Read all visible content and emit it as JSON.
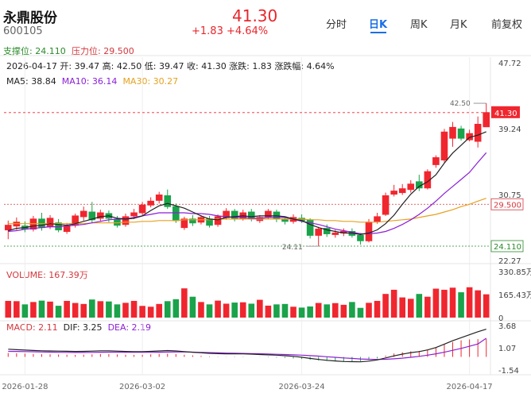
{
  "header": {
    "name": "永鼎股份",
    "code": "600105",
    "price": "41.30",
    "change": "+1.83 +4.64%",
    "support": "支撑位: 24.110",
    "pressure": "压力位: 29.500"
  },
  "tabs": [
    "分时",
    "日K",
    "周K",
    "月K",
    "前复权"
  ],
  "ohlc_line": "2026-04-17 开: 39.47 高: 42.50 低: 39.47 收: 41.30 涨跌: 1.83 涨跌幅: 4.64%",
  "ma_legend": [
    {
      "label": "MA5: 38.84",
      "color": "#222222"
    },
    {
      "label": "MA10: 36.14",
      "color": "#8b1fd6"
    },
    {
      "label": "MA30: 30.27",
      "color": "#e6a11f"
    }
  ],
  "volume_legend": "VOLUME: 167.39万",
  "macd_legend": [
    {
      "label": "MACD: 2.11",
      "color": "#d4373c"
    },
    {
      "label": "DIF: 3.25",
      "color": "#222222"
    },
    {
      "label": "DEA: 2.19",
      "color": "#8b1fd6"
    }
  ],
  "colors": {
    "up": "#f0262f",
    "down": "#1aa34a",
    "ma5": "#222222",
    "ma10": "#8b1fd6",
    "ma30": "#e6a11f",
    "accent": "#1a6fe8"
  },
  "chart_data": [
    {
      "type": "candlestick",
      "title": "",
      "ylim": [
        22.27,
        47.72
      ],
      "y_ticks": [
        "47.72",
        "39.24",
        "30.75",
        "22.27"
      ],
      "x_ticks": [
        "2026-01-28",
        "2026-03-02",
        "2026-03-24",
        "2026-04-17"
      ],
      "current_price_label": "41.30",
      "max_label": "42.50",
      "min_label": "24.11",
      "support_label": "24.110",
      "pressure_label": "29.500",
      "support": 24.11,
      "pressure": 29.5,
      "candles": [
        {
          "o": 26.2,
          "c": 26.8,
          "h": 27.4,
          "l": 25.0
        },
        {
          "o": 26.7,
          "c": 27.2,
          "h": 27.8,
          "l": 26.2
        },
        {
          "o": 26.7,
          "c": 26.3,
          "h": 27.3,
          "l": 25.9
        },
        {
          "o": 26.3,
          "c": 27.6,
          "h": 28.0,
          "l": 26.0
        },
        {
          "o": 27.6,
          "c": 26.5,
          "h": 28.4,
          "l": 26.1
        },
        {
          "o": 26.6,
          "c": 27.7,
          "h": 28.1,
          "l": 26.3
        },
        {
          "o": 27.1,
          "c": 26.2,
          "h": 27.6,
          "l": 25.9
        },
        {
          "o": 26.0,
          "c": 26.7,
          "h": 27.1,
          "l": 25.7
        },
        {
          "o": 26.8,
          "c": 28.0,
          "h": 28.3,
          "l": 26.5
        },
        {
          "o": 27.9,
          "c": 28.6,
          "h": 29.2,
          "l": 27.4
        },
        {
          "o": 28.5,
          "c": 27.5,
          "h": 29.8,
          "l": 27.1
        },
        {
          "o": 27.7,
          "c": 28.4,
          "h": 28.8,
          "l": 27.3
        },
        {
          "o": 28.3,
          "c": 27.7,
          "h": 28.7,
          "l": 27.2
        },
        {
          "o": 27.6,
          "c": 26.8,
          "h": 28.0,
          "l": 26.5
        },
        {
          "o": 26.9,
          "c": 27.9,
          "h": 28.3,
          "l": 26.6
        },
        {
          "o": 28.0,
          "c": 28.4,
          "h": 28.9,
          "l": 27.6
        },
        {
          "o": 28.4,
          "c": 29.4,
          "h": 29.8,
          "l": 28.1
        },
        {
          "o": 29.4,
          "c": 29.9,
          "h": 30.4,
          "l": 29.1
        },
        {
          "o": 30.0,
          "c": 30.7,
          "h": 31.1,
          "l": 29.6
        },
        {
          "o": 30.6,
          "c": 29.2,
          "h": 31.4,
          "l": 28.9
        },
        {
          "o": 29.2,
          "c": 27.4,
          "h": 29.6,
          "l": 27.1
        },
        {
          "o": 26.5,
          "c": 27.6,
          "h": 27.9,
          "l": 26.2
        },
        {
          "o": 27.6,
          "c": 27.1,
          "h": 28.1,
          "l": 26.7
        },
        {
          "o": 27.2,
          "c": 27.8,
          "h": 28.1,
          "l": 26.9
        },
        {
          "o": 27.6,
          "c": 26.8,
          "h": 28.0,
          "l": 26.5
        },
        {
          "o": 26.9,
          "c": 27.9,
          "h": 28.2,
          "l": 26.6
        },
        {
          "o": 27.8,
          "c": 28.6,
          "h": 29.0,
          "l": 27.5
        },
        {
          "o": 28.6,
          "c": 27.6,
          "h": 28.9,
          "l": 27.3
        },
        {
          "o": 27.7,
          "c": 28.4,
          "h": 28.8,
          "l": 27.4
        },
        {
          "o": 28.5,
          "c": 27.6,
          "h": 28.9,
          "l": 27.3
        },
        {
          "o": 27.4,
          "c": 27.8,
          "h": 28.1,
          "l": 27.1
        },
        {
          "o": 27.9,
          "c": 28.6,
          "h": 28.9,
          "l": 27.6
        },
        {
          "o": 28.5,
          "c": 27.6,
          "h": 28.8,
          "l": 27.2
        },
        {
          "o": 27.5,
          "c": 27.3,
          "h": 27.9,
          "l": 26.9
        },
        {
          "o": 27.3,
          "c": 27.8,
          "h": 28.2,
          "l": 27.0
        },
        {
          "o": 27.7,
          "c": 27.4,
          "h": 28.2,
          "l": 27.1
        },
        {
          "o": 27.5,
          "c": 25.5,
          "h": 27.7,
          "l": 25.1
        },
        {
          "o": 25.5,
          "c": 26.3,
          "h": 26.6,
          "l": 24.1
        },
        {
          "o": 26.4,
          "c": 25.7,
          "h": 26.9,
          "l": 25.3
        },
        {
          "o": 25.6,
          "c": 25.8,
          "h": 26.2,
          "l": 25.2
        },
        {
          "o": 25.8,
          "c": 26.0,
          "h": 26.4,
          "l": 25.4
        },
        {
          "o": 26.0,
          "c": 25.5,
          "h": 26.4,
          "l": 25.2
        },
        {
          "o": 25.5,
          "c": 24.8,
          "h": 25.8,
          "l": 24.3
        },
        {
          "o": 24.8,
          "c": 27.2,
          "h": 27.6,
          "l": 24.6
        },
        {
          "o": 27.3,
          "c": 27.9,
          "h": 28.4,
          "l": 27.0
        },
        {
          "o": 28.2,
          "c": 30.6,
          "h": 31.0,
          "l": 28.0
        },
        {
          "o": 30.8,
          "c": 31.2,
          "h": 32.0,
          "l": 30.5
        },
        {
          "o": 31.0,
          "c": 31.5,
          "h": 32.1,
          "l": 30.7
        },
        {
          "o": 31.4,
          "c": 32.1,
          "h": 32.6,
          "l": 31.0
        },
        {
          "o": 32.4,
          "c": 31.6,
          "h": 33.3,
          "l": 31.2
        },
        {
          "o": 31.6,
          "c": 33.7,
          "h": 34.0,
          "l": 31.4
        },
        {
          "o": 34.6,
          "c": 35.5,
          "h": 35.8,
          "l": 34.2
        },
        {
          "o": 35.2,
          "c": 38.8,
          "h": 39.2,
          "l": 34.9
        },
        {
          "o": 38.0,
          "c": 39.4,
          "h": 40.1,
          "l": 36.9
        },
        {
          "o": 39.2,
          "c": 38.0,
          "h": 39.6,
          "l": 37.7
        },
        {
          "o": 37.8,
          "c": 38.6,
          "h": 39.1,
          "l": 37.6
        },
        {
          "o": 37.6,
          "c": 39.8,
          "h": 40.8,
          "l": 36.8
        },
        {
          "o": 39.47,
          "c": 41.3,
          "h": 42.5,
          "l": 39.47
        }
      ],
      "ma5_series": [
        26.1,
        26.4,
        26.5,
        26.7,
        26.8,
        27.0,
        26.9,
        26.8,
        27.0,
        27.3,
        27.6,
        27.9,
        28.0,
        27.7,
        27.6,
        27.7,
        28.0,
        28.7,
        29.3,
        29.6,
        29.3,
        29.0,
        28.5,
        28.0,
        27.6,
        27.5,
        27.8,
        27.9,
        28.0,
        27.9,
        28.0,
        28.0,
        28.0,
        27.9,
        27.6,
        27.4,
        26.9,
        26.5,
        26.2,
        26.0,
        25.8,
        25.8,
        25.6,
        25.8,
        26.2,
        27.0,
        28.1,
        29.5,
        30.8,
        31.8,
        32.4,
        33.3,
        34.8,
        36.1,
        37.1,
        38.1,
        38.4,
        38.84
      ],
      "ma10_series": [
        26.0,
        26.1,
        26.3,
        26.4,
        26.5,
        26.6,
        26.6,
        26.7,
        26.8,
        26.9,
        27.1,
        27.3,
        27.5,
        27.6,
        27.6,
        27.8,
        28.0,
        28.2,
        28.4,
        28.4,
        28.4,
        28.4,
        28.3,
        28.3,
        28.2,
        28.0,
        27.9,
        27.8,
        27.8,
        27.7,
        27.7,
        27.8,
        27.8,
        27.8,
        27.6,
        27.3,
        27.1,
        26.9,
        26.6,
        26.3,
        26.1,
        25.9,
        25.7,
        25.7,
        25.8,
        26.0,
        26.4,
        26.9,
        27.5,
        28.2,
        29.0,
        29.9,
        30.9,
        31.8,
        32.7,
        33.6,
        34.9,
        36.14
      ],
      "ma30_series": [
        27.0,
        27.0,
        27.0,
        27.0,
        27.0,
        27.0,
        27.0,
        27.0,
        27.0,
        27.0,
        27.1,
        27.1,
        27.1,
        27.1,
        27.2,
        27.2,
        27.3,
        27.3,
        27.4,
        27.4,
        27.4,
        27.5,
        27.5,
        27.5,
        27.5,
        27.6,
        27.6,
        27.6,
        27.6,
        27.6,
        27.6,
        27.6,
        27.6,
        27.6,
        27.6,
        27.6,
        27.5,
        27.5,
        27.4,
        27.4,
        27.3,
        27.3,
        27.2,
        27.2,
        27.2,
        27.3,
        27.4,
        27.5,
        27.6,
        27.8,
        28.0,
        28.2,
        28.5,
        28.8,
        29.2,
        29.5,
        29.9,
        30.27
      ]
    },
    {
      "type": "bar",
      "title": "",
      "y_ticks": [
        "330.85万",
        "165.43万",
        "0"
      ],
      "ylim": [
        0,
        330.85
      ],
      "unit": "万",
      "values": [
        120,
        118,
        95,
        112,
        122,
        115,
        85,
        120,
        105,
        98,
        130,
        118,
        116,
        95,
        106,
        120,
        84,
        78,
        98,
        118,
        132,
        210,
        150,
        112,
        95,
        122,
        100,
        108,
        110,
        100,
        128,
        86,
        95,
        98,
        78,
        72,
        80,
        105,
        95,
        104,
        92,
        112,
        70,
        106,
        120,
        170,
        200,
        145,
        135,
        170,
        150,
        208,
        200,
        215,
        182,
        218,
        196,
        167.39
      ]
    },
    {
      "type": "bar",
      "title": "",
      "y_ticks": [
        "3.68",
        "1.07",
        "-1.54"
      ],
      "ylim": [
        -1.54,
        3.68
      ],
      "macd_values": [
        0.45,
        0.42,
        0.38,
        0.35,
        0.32,
        0.3,
        0.28,
        0.26,
        0.24,
        0.26,
        0.3,
        0.34,
        0.33,
        0.29,
        0.26,
        0.24,
        0.25,
        0.3,
        0.35,
        0.38,
        0.33,
        0.25,
        0.18,
        0.12,
        0.06,
        0.03,
        0.02,
        0.04,
        0.03,
        0.01,
        -0.02,
        -0.05,
        -0.08,
        -0.12,
        -0.18,
        -0.25,
        -0.35,
        -0.42,
        -0.48,
        -0.52,
        -0.54,
        -0.52,
        -0.5,
        -0.38,
        -0.18,
        0.15,
        0.4,
        0.55,
        0.65,
        0.7,
        0.85,
        1.1,
        1.45,
        1.75,
        1.95,
        2.05,
        2.08,
        2.11
      ],
      "dif_series": [
        0.9,
        0.85,
        0.8,
        0.75,
        0.72,
        0.7,
        0.68,
        0.66,
        0.64,
        0.65,
        0.68,
        0.72,
        0.72,
        0.68,
        0.64,
        0.62,
        0.62,
        0.65,
        0.7,
        0.74,
        0.7,
        0.62,
        0.55,
        0.48,
        0.42,
        0.38,
        0.36,
        0.36,
        0.35,
        0.32,
        0.28,
        0.24,
        0.2,
        0.14,
        0.06,
        -0.04,
        -0.18,
        -0.3,
        -0.4,
        -0.48,
        -0.54,
        -0.56,
        -0.58,
        -0.5,
        -0.36,
        -0.12,
        0.12,
        0.32,
        0.5,
        0.62,
        0.82,
        1.1,
        1.5,
        1.9,
        2.25,
        2.6,
        2.95,
        3.25
      ],
      "dea_series": [
        0.65,
        0.64,
        0.62,
        0.6,
        0.58,
        0.56,
        0.54,
        0.53,
        0.52,
        0.52,
        0.53,
        0.55,
        0.56,
        0.56,
        0.55,
        0.54,
        0.54,
        0.54,
        0.55,
        0.57,
        0.58,
        0.58,
        0.56,
        0.53,
        0.5,
        0.47,
        0.45,
        0.43,
        0.41,
        0.39,
        0.37,
        0.34,
        0.31,
        0.28,
        0.24,
        0.2,
        0.15,
        0.09,
        0.02,
        -0.05,
        -0.12,
        -0.18,
        -0.24,
        -0.28,
        -0.3,
        -0.28,
        -0.23,
        -0.15,
        -0.05,
        0.06,
        0.2,
        0.36,
        0.55,
        0.77,
        1.0,
        1.25,
        1.52,
        2.19
      ]
    }
  ]
}
